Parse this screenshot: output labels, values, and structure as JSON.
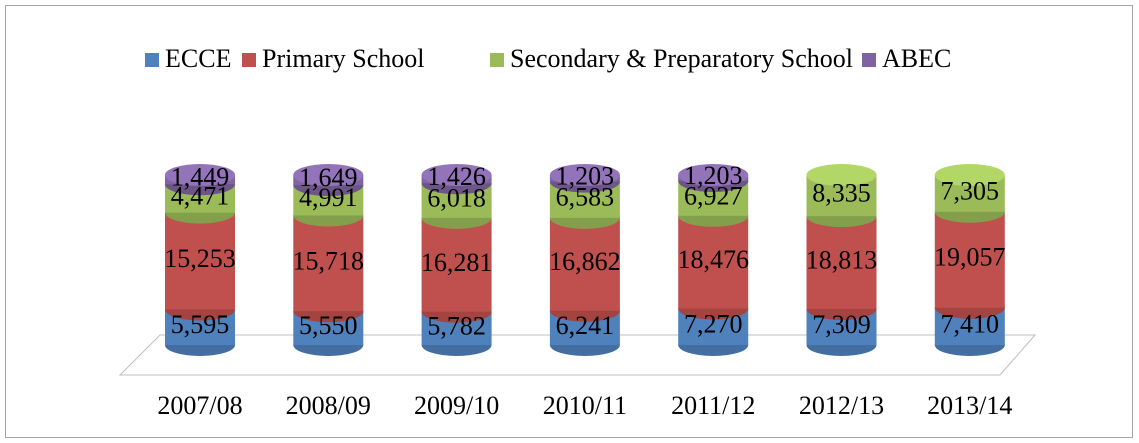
{
  "chart_data": {
    "type": "bar",
    "stack": "percent",
    "categories": [
      "2007/08",
      "2008/09",
      "2009/10",
      "2010/11",
      "2011/12",
      "2012/13",
      "2013/14"
    ],
    "series": [
      {
        "name": "ECCE",
        "color": "#4f81bd",
        "values": [
          5595,
          5550,
          5782,
          6241,
          7270,
          7309,
          7410
        ],
        "value_labels": [
          "5,595",
          "5,550",
          "5,782",
          "6,241",
          "7,270",
          "7,309",
          "7,410"
        ]
      },
      {
        "name": "Primary School",
        "color": "#c0504d",
        "values": [
          15253,
          15718,
          16281,
          16862,
          18476,
          18813,
          19057
        ],
        "value_labels": [
          "15,253",
          "15,718",
          "16,281",
          "16,862",
          "18,476",
          "18,813",
          "19,057"
        ]
      },
      {
        "name": "Secondary & Preparatory School",
        "color": "#9bbb59",
        "values": [
          4471,
          4991,
          6018,
          6583,
          6927,
          8335,
          7305
        ],
        "value_labels": [
          "4,471",
          "4,991",
          "6,018",
          "6,583",
          "6,927",
          "8,335",
          "7,305"
        ]
      },
      {
        "name": "ABEC",
        "color": "#8064a2",
        "values": [
          1449,
          1649,
          1426,
          1203,
          1203,
          null,
          null
        ],
        "value_labels": [
          "1,449",
          "1,649",
          "1,426",
          "1,203",
          "1,203",
          null,
          null
        ]
      }
    ]
  }
}
